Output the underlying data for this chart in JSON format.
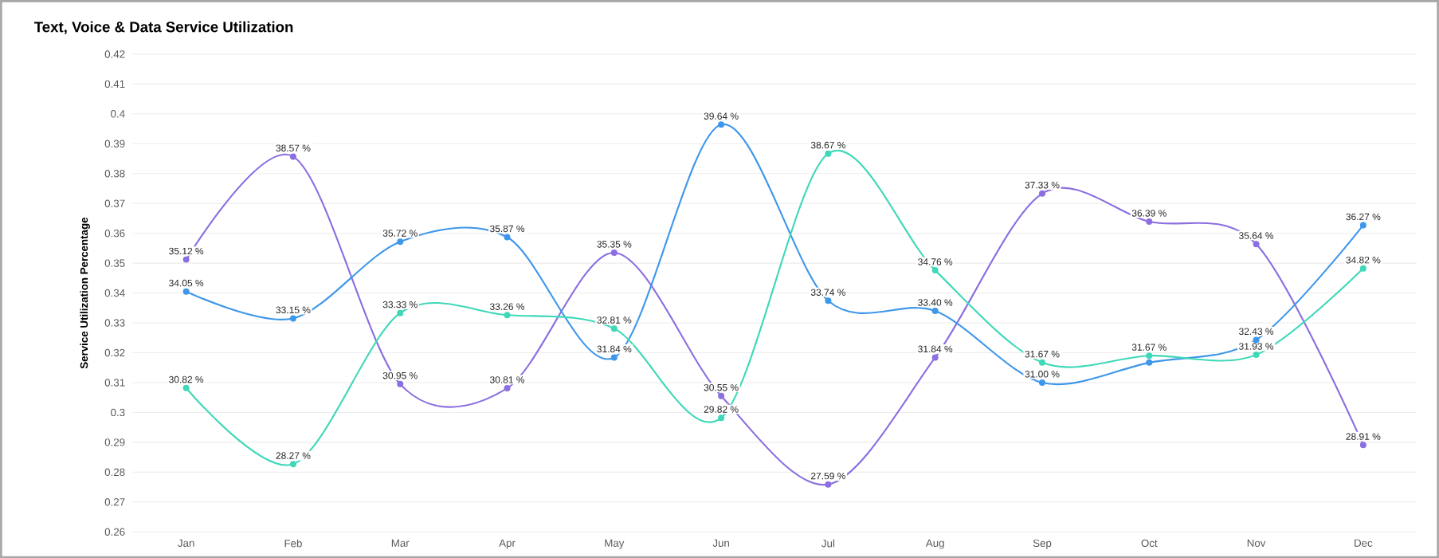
{
  "chart_data": {
    "type": "line",
    "title": "Text, Voice & Data Service Utilization",
    "ylabel": "Service Utilization Percentage",
    "categories": [
      "Jan",
      "Feb",
      "Mar",
      "Apr",
      "May",
      "Jun",
      "Jul",
      "Aug",
      "Sep",
      "Oct",
      "Nov",
      "Dec"
    ],
    "series": [
      {
        "color": "#8c6fe0",
        "values": [
          0.3512,
          0.3857,
          0.3095,
          0.3081,
          0.3535,
          0.3055,
          0.2759,
          0.3184,
          0.3733,
          0.3639,
          0.3564,
          0.2891
        ],
        "value_labels": [
          "35.12 %",
          "38.57 %",
          "30.95 %",
          "30.81 %",
          "35.35 %",
          "30.55 %",
          "27.59 %",
          "31.84 %",
          "37.33 %",
          "36.39 %",
          "35.64 %",
          "28.91 %"
        ]
      },
      {
        "color": "#3f97ea",
        "values": [
          0.3405,
          0.3315,
          0.3572,
          0.3587,
          0.3184,
          0.3964,
          0.3374,
          0.334,
          0.31,
          0.3167,
          0.3243,
          0.3627
        ],
        "value_labels": [
          "34.05 %",
          "33.15 %",
          "35.72 %",
          "35.87 %",
          "31.84 %",
          "39.64 %",
          "33.74 %",
          "33.40 %",
          "31.00 %",
          "31.67 %",
          "32.43 %",
          "36.27 %"
        ]
      },
      {
        "color": "#3fd8b8",
        "values": [
          0.3082,
          0.2827,
          0.3333,
          0.3326,
          0.3281,
          0.2982,
          0.3867,
          0.3476,
          0.3167,
          0.319,
          0.3193,
          0.3482
        ],
        "value_labels": [
          "30.82 %",
          "28.27 %",
          "33.33 %",
          "33.26 %",
          "32.81 %",
          "29.82 %",
          "38.67 %",
          "34.76 %",
          "31.67 %",
          null,
          "31.93 %",
          "34.82 %"
        ]
      }
    ],
    "ylim": [
      0.26,
      0.42
    ],
    "yticks": [
      0.26,
      0.27,
      0.28,
      0.29,
      0.3,
      0.31,
      0.32,
      0.33,
      0.34,
      0.35,
      0.36,
      0.37,
      0.38,
      0.39,
      0.4,
      0.41,
      0.42
    ],
    "grid": "y",
    "marker": "circle",
    "line_style": "solid"
  }
}
